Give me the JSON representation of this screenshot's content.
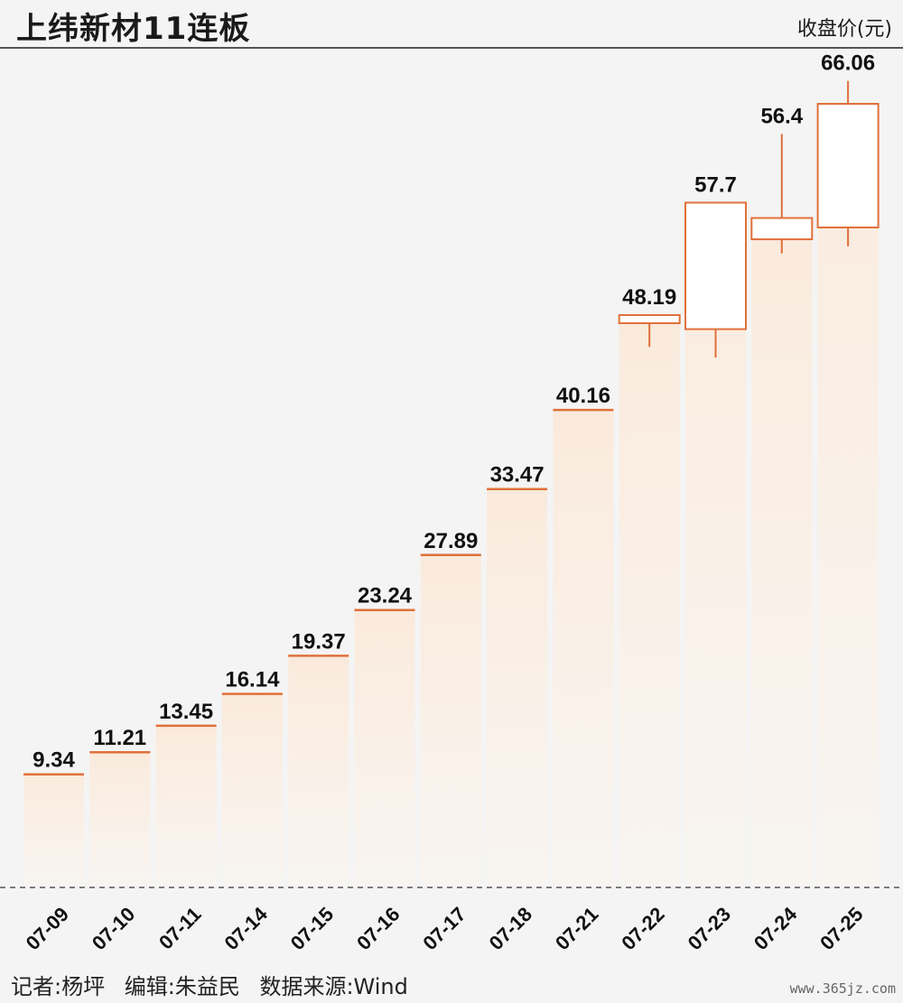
{
  "title": "上纬新材11连板",
  "unit_label": "收盘价(元)",
  "footer": {
    "reporter": "记者:杨坪",
    "editor": "编辑:朱益民",
    "source": "数据来源:Wind"
  },
  "watermark": "www.365jz.com",
  "colors": {
    "candle": "#e0703a",
    "background": "#f4f4f4",
    "column": "#fbefe4"
  },
  "chart_data": {
    "type": "bar",
    "categories": [
      "07-09",
      "07-10",
      "07-11",
      "07-14",
      "07-15",
      "07-16",
      "07-17",
      "07-18",
      "07-21",
      "07-22",
      "07-23",
      "07-24",
      "07-25"
    ],
    "values": [
      9.34,
      11.21,
      13.45,
      16.14,
      19.37,
      23.24,
      27.89,
      33.47,
      40.16,
      48.19,
      57.7,
      56.4,
      66.06
    ],
    "candles": [
      {
        "date": "07-22",
        "open": 47.5,
        "close": 48.19,
        "high": 48.19,
        "low": 45.5
      },
      {
        "date": "07-23",
        "open": 47.0,
        "close": 57.7,
        "high": 57.7,
        "low": 44.6
      },
      {
        "date": "07-24",
        "open": 54.6,
        "close": 56.4,
        "high": 63.5,
        "low": 53.4
      },
      {
        "date": "07-25",
        "open": 55.6,
        "close": 66.06,
        "high": 68.0,
        "low": 54.0
      }
    ],
    "ylim": [
      0,
      70
    ],
    "xlabel": "",
    "ylabel": "收盘价(元)"
  }
}
